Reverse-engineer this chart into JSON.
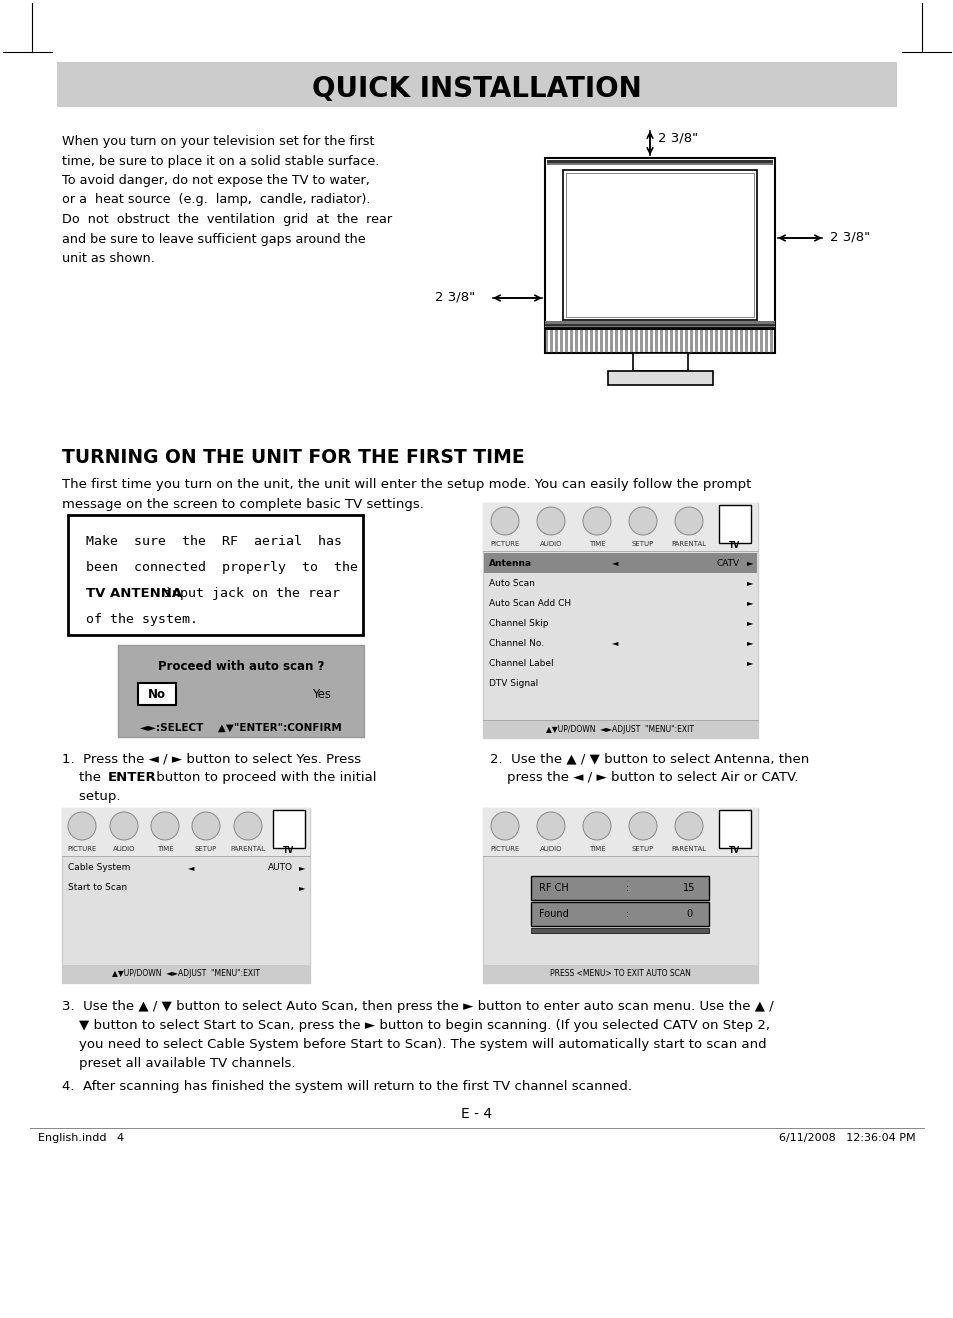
{
  "bg_color": "#ffffff",
  "header_bg": "#cccccc",
  "header_text": "QUICK INSTALLATION",
  "body_text_intro": "When you turn on your television set for the first\ntime, be sure to place it on a solid stable surface.\nTo avoid danger, do not expose the TV to water,\nor a  heat source  (e.g.  lamp,  candle, radiator).\nDo  not  obstruct  the  ventilation  grid  at  the  rear\nand be sure to leave sufficient gaps around the\nunit as shown.",
  "section_title": "TURNING ON THE UNIT FOR THE FIRST TIME",
  "section_body1": "The first time you turn on the unit, the unit will enter the setup mode. You can easily follow the prompt",
  "section_body2": "message on the screen to complete basic TV settings.",
  "box_text_lines": [
    {
      "text": "Make  sure  the  RF  aerial  has",
      "bold": false
    },
    {
      "text": "been  connected  properly  to  the",
      "bold": false
    },
    {
      "text_parts": [
        {
          "text": "TV ANTENNA",
          "bold": true
        },
        {
          "text": " input jack on the rear",
          "bold": false
        }
      ],
      "mixed": true
    },
    {
      "text": "of the system.",
      "bold": false
    }
  ],
  "scan_box_title": "Proceed with auto scan ?",
  "scan_box_no": "No",
  "scan_box_yes": "Yes",
  "scan_box_footer": "◄►:SELECT    ▲▼\"ENTER\":CONFIRM",
  "menu_items": [
    "Antenna",
    "Auto Scan",
    "Auto Scan Add CH",
    "Channel Skip",
    "Channel No.",
    "Channel Label",
    "DTV Signal"
  ],
  "menu_highlight": "Antenna",
  "menu_catv": "CATV",
  "menu_tabs": [
    "PICTURE",
    "AUDIO",
    "TIME",
    "SETUP",
    "PARENTAL",
    "TV"
  ],
  "menu_footer1": "▲▼UP/DOWN  ◄►ADJUST  \"MENU\":EXIT",
  "step1_line1": "1.  Press the ◄ / ► button to select Yes. Press",
  "step1_line2": "    the ",
  "step1_line2b": "ENTER",
  "step1_line2c": " button to proceed with the initial",
  "step1_line3": "    setup.",
  "step2_line1": "2.  Use the ▲ / ▼ button to select Antenna, then",
  "step2_line2": "    press the ◄ / ► button to select Air or CATV.",
  "step3_line1": "3.  Use the ▲ / ▼ button to select Auto Scan, then press the ► button to enter auto scan menu. Use the ▲ /",
  "step3_line2": "    ▼ button to select Start to Scan, press the ► button to begin scanning. (If you selected CATV on Step 2,",
  "step3_line3": "    you need to select Cable System before Start to Scan). The system will automatically start to scan and",
  "step3_line4": "    preset all available TV channels.",
  "step4_text": "4.  After scanning has finished the system will return to the first TV channel scanned.",
  "cable_menu_items": [
    "Cable System",
    "Start to Scan"
  ],
  "cable_menu_auto": "AUTO",
  "cable_menu_tabs": [
    "PICTURE",
    "AUDIO",
    "TIME",
    "SETUP",
    "PARENTAL",
    "TV"
  ],
  "cable_menu_footer": "▲▼UP/DOWN  ◄►ADJUST  \"MENU\":EXIT",
  "scan_menu_rf": "RF CH",
  "scan_menu_rf_val": "15",
  "scan_menu_found": "Found",
  "scan_menu_found_val": "0",
  "scan_menu_footer": "PRESS <MENU> TO EXIT AUTO SCAN",
  "page_footer_left": "English.indd   4",
  "page_footer_right": "6/11/2008   12:36:04 PM",
  "page_num": "E - 4",
  "dim_top": "2 3/8\"",
  "dim_right": "2 3/8\"",
  "dim_left": "2 3/8\""
}
